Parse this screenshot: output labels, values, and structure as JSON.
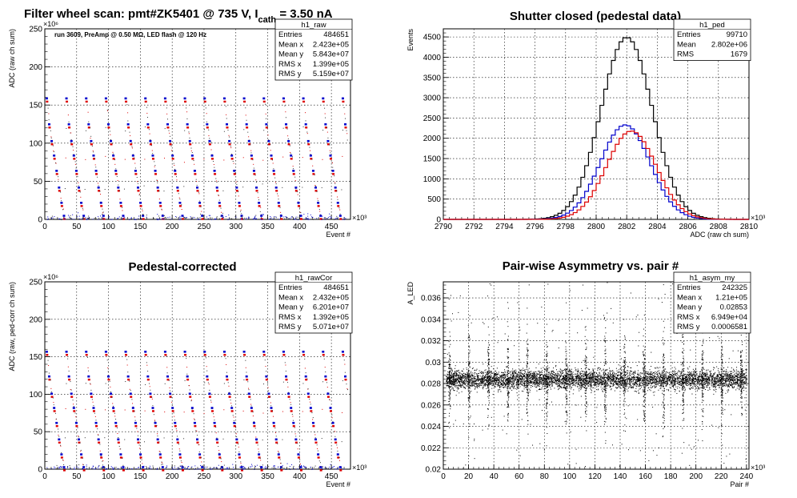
{
  "page_title": {
    "text": "Filter wheel scan: pmt#ZK5401 @   735 V, I",
    "subscript": "cath",
    "suffix": " = 3.50 nA"
  },
  "chart_data": [
    {
      "id": "raw",
      "type": "scatter",
      "annotation": "run 3609, PreAmp @ 0.50 MΩ, LED flash @  120 Hz",
      "xlabel": "Event #",
      "ylabel": "ADC (raw ch sum)",
      "xlim": [
        0,
        480
      ],
      "ylim": [
        0,
        250
      ],
      "x_exponent": "×10³",
      "y_exponent": "×10⁶",
      "xticks": [
        0,
        50,
        100,
        150,
        200,
        250,
        300,
        350,
        400,
        450
      ],
      "yticks": [
        0,
        50,
        100,
        150,
        200,
        250
      ],
      "grid": true,
      "cycle_period": 31,
      "levels": [
        157,
        123,
        101,
        82,
        62,
        40,
        20,
        3
      ],
      "colors": {
        "a": "#0000cc",
        "b": "#dd0000",
        "dots": "#333333"
      },
      "stats": {
        "title": "h1_raw",
        "rows": [
          {
            "label": "Entries",
            "value": "484651"
          },
          {
            "label": "Mean x",
            "value": "2.423e+05"
          },
          {
            "label": "Mean y",
            "value": "5.843e+07"
          },
          {
            "label": "RMS x",
            "value": "1.399e+05"
          },
          {
            "label": "RMS y",
            "value": "5.159e+07"
          }
        ]
      }
    },
    {
      "id": "ped",
      "type": "histogram",
      "title": "Shutter closed (pedestal data)",
      "xlabel": "ADC (raw ch sum)",
      "ylabel": "Events",
      "xlim": [
        2790,
        2810
      ],
      "ylim": [
        0,
        4700
      ],
      "x_exponent": "×10³",
      "xticks": [
        2790,
        2792,
        2794,
        2796,
        2798,
        2800,
        2802,
        2804,
        2806,
        2808,
        2810
      ],
      "yticks": [
        0,
        500,
        1000,
        1500,
        2000,
        2500,
        3000,
        3500,
        4000,
        4500
      ],
      "grid": true,
      "bin_width": 0.25,
      "series": [
        {
          "color": "#000000",
          "peak": 4490,
          "mean": 2802.0,
          "sigma": 1.68
        },
        {
          "color": "#0000cc",
          "peak": 2330,
          "mean": 2801.9,
          "sigma": 1.62
        },
        {
          "color": "#dd0000",
          "peak": 2180,
          "mean": 2802.3,
          "sigma": 1.62
        }
      ],
      "stats": {
        "title": "h1_ped",
        "rows": [
          {
            "label": "Entries",
            "value": "99710"
          },
          {
            "label": "Mean",
            "value": "2.802e+06"
          },
          {
            "label": "RMS",
            "value": "1679"
          }
        ]
      }
    },
    {
      "id": "rawcor",
      "type": "scatter",
      "title": "Pedestal-corrected",
      "xlabel": "Event #",
      "ylabel": "ADC (raw, ped-corr ch sum)",
      "xlim": [
        0,
        480
      ],
      "ylim": [
        0,
        250
      ],
      "x_exponent": "×10³",
      "y_exponent": "×10⁶",
      "xticks": [
        0,
        50,
        100,
        150,
        200,
        250,
        300,
        350,
        400,
        450
      ],
      "yticks": [
        0,
        50,
        100,
        150,
        200,
        250
      ],
      "grid": true,
      "cycle_period": 31,
      "levels": [
        155,
        122,
        99,
        80,
        60,
        38,
        18,
        1
      ],
      "colors": {
        "a": "#0000cc",
        "b": "#dd0000",
        "dots": "#333333"
      },
      "stats": {
        "title": "h1_rawCor",
        "rows": [
          {
            "label": "Entries",
            "value": "484651"
          },
          {
            "label": "Mean x",
            "value": "2.432e+05"
          },
          {
            "label": "Mean y",
            "value": "6.201e+07"
          },
          {
            "label": "RMS x",
            "value": "1.392e+05"
          },
          {
            "label": "RMS y",
            "value": "5.071e+07"
          }
        ]
      }
    },
    {
      "id": "asym",
      "type": "scatter",
      "title": "Pair-wise Asymmetry vs. pair #",
      "xlabel": "Pair #",
      "ylabel": "A_LED",
      "xlim": [
        0,
        242
      ],
      "ylim": [
        0.02,
        0.0375
      ],
      "x_exponent": "×10³",
      "xticks": [
        0,
        20,
        40,
        60,
        80,
        100,
        120,
        140,
        160,
        180,
        200,
        220,
        240
      ],
      "yticks": [
        0.02,
        0.022,
        0.024,
        0.026,
        0.028,
        0.03,
        0.032,
        0.034,
        0.036
      ],
      "ytick_labels": [
        "0.02",
        "0.022",
        "0.024",
        "0.026",
        "0.028",
        "0.03",
        "0.032",
        "0.034",
        "0.036"
      ],
      "grid": true,
      "band_center": 0.0284,
      "band_halfwidth": 0.0008,
      "spike_period": 15.4,
      "stats": {
        "title": "h1_asym_my",
        "rows": [
          {
            "label": "Entries",
            "value": "242325"
          },
          {
            "label": "Mean x",
            "value": "1.21e+05"
          },
          {
            "label": "Mean y",
            "value": "0.02853"
          },
          {
            "label": "RMS x",
            "value": "6.949e+04"
          },
          {
            "label": "RMS y",
            "value": "0.0006581"
          }
        ]
      }
    }
  ]
}
